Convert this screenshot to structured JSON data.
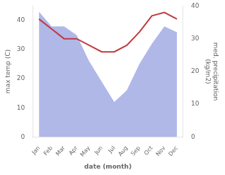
{
  "chart_data": {
    "type": "line",
    "categories": [
      "Jan",
      "Feb",
      "Mar",
      "Apr",
      "May",
      "Jun",
      "Jul",
      "Aug",
      "Sep",
      "Oct",
      "Nov",
      "Dec"
    ],
    "xlabel": "date (month)",
    "ylabel": "max temp (C)",
    "y2label": "med. precipitation\n(kg/m2)",
    "series": [
      {
        "type": "area",
        "color": "#b0b8e8",
        "values": [
          43,
          38,
          38,
          35,
          26,
          19,
          12,
          16,
          25,
          32,
          38,
          36
        ]
      },
      {
        "type": "line",
        "color": "#c0393b",
        "axis": "y2",
        "values": [
          36,
          33,
          30,
          30,
          28,
          26,
          26,
          28,
          32,
          37,
          38,
          36
        ]
      }
    ],
    "ylim": [
      0,
      45
    ],
    "yticks": [
      0,
      10,
      20,
      30,
      40
    ],
    "y2lim": [
      0,
      40
    ],
    "y2ticks": [
      0,
      10,
      20,
      30,
      40
    ],
    "grid": false,
    "legend": false
  }
}
